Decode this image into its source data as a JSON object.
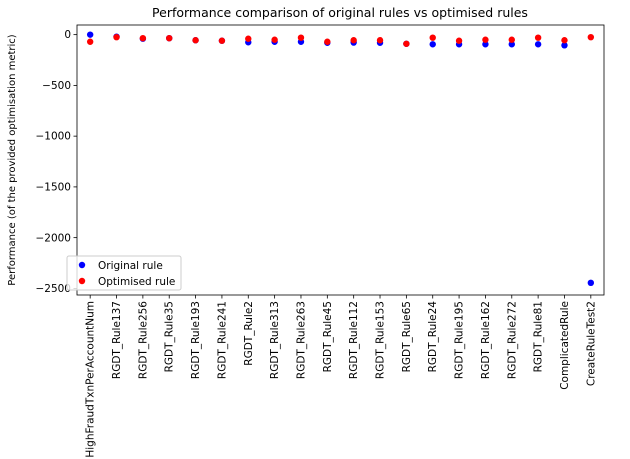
{
  "chart_data": {
    "type": "scatter",
    "title": "Performance comparison of original rules vs optimised rules",
    "xlabel": "",
    "ylabel": "Performance (of the provided optimisation metric)",
    "categories": [
      "HighFraudTxnPerAccountNum",
      "RGDT_Rule137",
      "RGDT_Rule256",
      "RGDT_Rule35",
      "RGDT_Rule193",
      "RGDT_Rule241",
      "RGDT_Rule2",
      "RGDT_Rule313",
      "RGDT_Rule263",
      "RGDT_Rule45",
      "RGDT_Rule112",
      "RGDT_Rule153",
      "RGDT_Rule65",
      "RGDT_Rule24",
      "RGDT_Rule195",
      "RGDT_Rule162",
      "RGDT_Rule272",
      "RGDT_Rule81",
      "ComplicatedRule",
      "CreateRuleTest2"
    ],
    "series": [
      {
        "name": "Original rule",
        "color": "#0000ff",
        "values": [
          0,
          -20,
          -40,
          -35,
          -55,
          -60,
          -75,
          -70,
          -70,
          -80,
          -78,
          -80,
          -90,
          -95,
          -95,
          -95,
          -95,
          -95,
          -105,
          -2445
        ]
      },
      {
        "name": "Optimised rule",
        "color": "#ff0000",
        "values": [
          -70,
          -25,
          -35,
          -35,
          -55,
          -60,
          -40,
          -50,
          -30,
          -70,
          -55,
          -55,
          -90,
          -30,
          -60,
          -50,
          -50,
          -30,
          -55,
          -25
        ]
      }
    ],
    "yticks": [
      0,
      -500,
      -1000,
      -1500,
      -2000,
      -2500
    ],
    "ylim": [
      -2565,
      95
    ],
    "grid": false,
    "legend_position": "lower-left"
  }
}
